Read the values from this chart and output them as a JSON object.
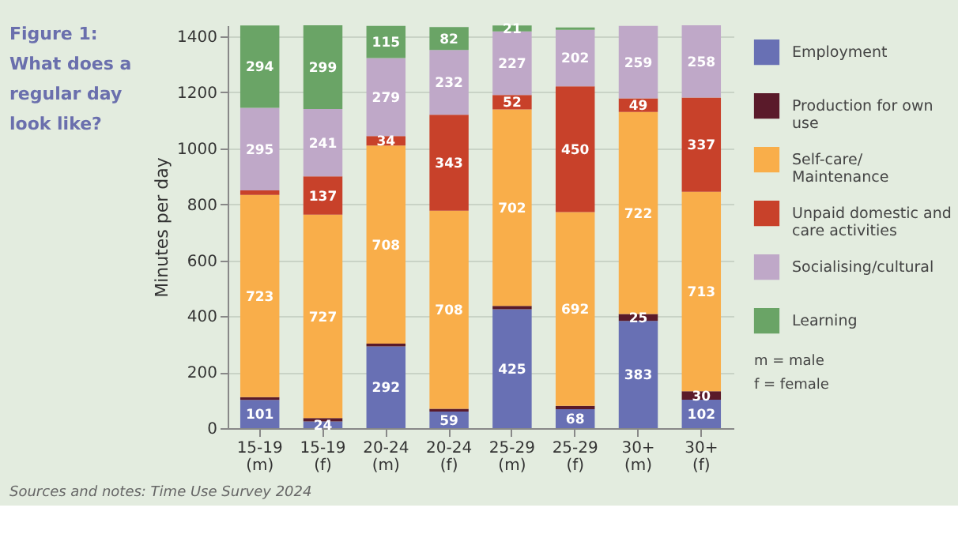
{
  "chart_data": {
    "type": "bar",
    "title": "Figure 1: What does a regular day look like?",
    "ylabel": "Minutes per day",
    "categories": [
      "15-19 (m)",
      "15-19 (f)",
      "20-24 (m)",
      "20-24 (f)",
      "25-29 (m)",
      "25-29 (f)",
      "30+ (m)",
      "30+ (f)"
    ],
    "stacked": true,
    "data_labels": false,
    "legend": "right",
    "grid": "y",
    "ylim": [
      0,
      1440
    ],
    "yticks": [
      0,
      200,
      400,
      600,
      800,
      1000,
      1200,
      1400
    ],
    "series": [
      {
        "name": "Employment",
        "color": "#6870b4",
        "values": [
          101,
          24,
          292,
          59,
          425,
          68,
          383,
          102
        ],
        "value_labels": [
          "101",
          "24",
          "292",
          "59",
          "425",
          "68",
          "383",
          "102"
        ]
      },
      {
        "name": "Production for own use",
        "color": "#5a1a2a",
        "values": [
          10,
          12,
          10,
          10,
          12,
          12,
          25,
          30
        ],
        "value_labels": [
          null,
          null,
          null,
          null,
          null,
          null,
          "25",
          "30"
        ]
      },
      {
        "name": "Self-care/ Maintenance",
        "color": "#f9ae4a",
        "values": [
          723,
          727,
          708,
          708,
          702,
          692,
          722,
          713
        ],
        "value_labels": [
          "723",
          "727",
          "708",
          "708",
          "702",
          "692",
          "722",
          "713"
        ]
      },
      {
        "name": "Unpaid domestic and care activities",
        "color": "#c8412a",
        "values": [
          16,
          137,
          34,
          343,
          52,
          450,
          49,
          337
        ],
        "value_labels": [
          null,
          "137",
          "34",
          "343",
          "52",
          "450",
          "49",
          "337"
        ]
      },
      {
        "name": "Socialising/cultural",
        "color": "#bfa8c8",
        "values": [
          295,
          241,
          279,
          232,
          227,
          202,
          259,
          258
        ],
        "value_labels": [
          "295",
          "241",
          "279",
          "232",
          "227",
          "202",
          "259",
          "258"
        ]
      },
      {
        "name": "Learning",
        "color": "#6aa466",
        "values": [
          294,
          299,
          115,
          82,
          21,
          8,
          null,
          null
        ],
        "value_labels": [
          "294",
          "299",
          "115",
          "82",
          "21",
          null,
          null,
          null
        ]
      }
    ],
    "annotations": [
      "m = male",
      "f = female",
      "Sources and notes: Time Use Survey 2024"
    ]
  }
}
